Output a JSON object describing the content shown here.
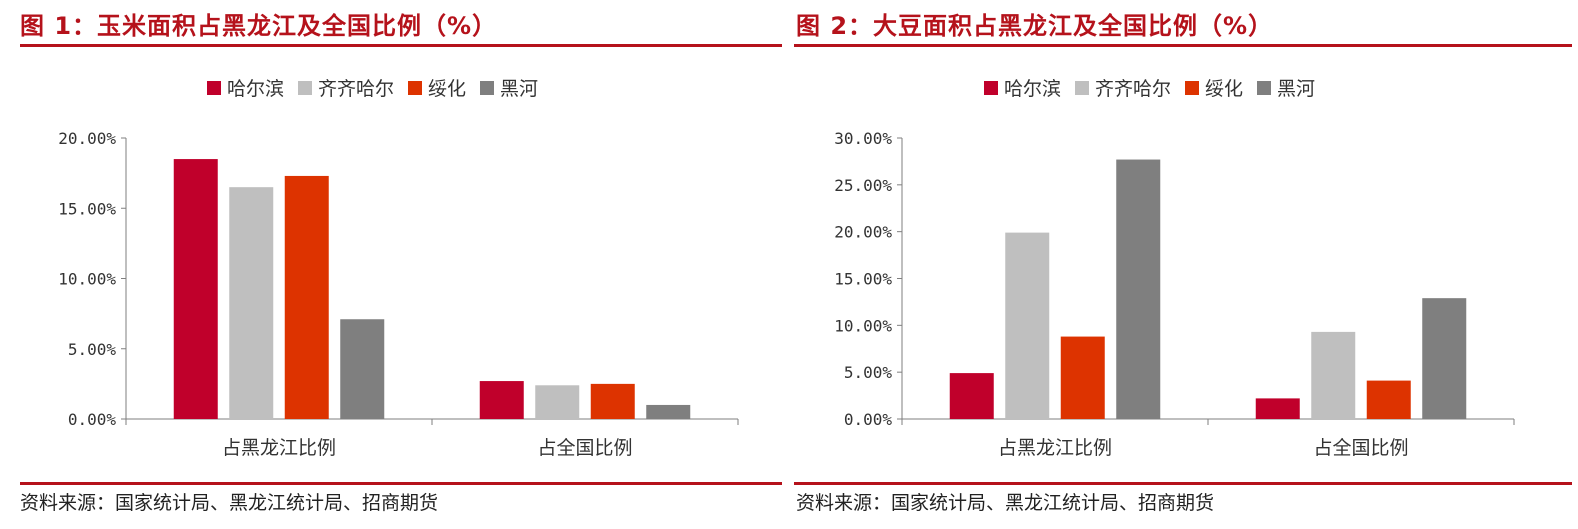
{
  "charts": [
    {
      "id": "p1",
      "title": "图 1：玉米面积占黑龙江及全国比例（%）",
      "source": "资料来源：国家统计局、黑龙江统计局、招商期货"
    },
    {
      "id": "p2",
      "title": "图 2：大豆面积占黑龙江及全国比例（%）",
      "source": "资料来源：国家统计局、黑龙江统计局、招商期货"
    }
  ],
  "colors": {
    "accent": "#b5121b",
    "哈尔滨": "#c0002b",
    "齐齐哈尔": "#bfbfbf",
    "绥化": "#dd3300",
    "黑河": "#7f7f7f"
  },
  "chart_data": [
    {
      "type": "bar",
      "title": "图 1：玉米面积占黑龙江及全国比例（%）",
      "categories": [
        "占黑龙江比例",
        "占全国比例"
      ],
      "series": [
        {
          "name": "哈尔滨",
          "values": [
            18.5,
            2.7
          ]
        },
        {
          "name": "齐齐哈尔",
          "values": [
            16.5,
            2.4
          ]
        },
        {
          "name": "绥化",
          "values": [
            17.3,
            2.5
          ]
        },
        {
          "name": "黑河",
          "values": [
            7.1,
            1.0
          ]
        }
      ],
      "ylim": [
        0,
        20
      ],
      "yticks": [
        0,
        5,
        10,
        15,
        20
      ],
      "ytick_labels": [
        "0.00%",
        "5.00%",
        "10.00%",
        "15.00%",
        "20.00%"
      ],
      "legend": "top-center",
      "grid": false
    },
    {
      "type": "bar",
      "title": "图 2：大豆面积占黑龙江及全国比例（%）",
      "categories": [
        "占黑龙江比例",
        "占全国比例"
      ],
      "series": [
        {
          "name": "哈尔滨",
          "values": [
            4.9,
            2.2
          ]
        },
        {
          "name": "齐齐哈尔",
          "values": [
            19.9,
            9.3
          ]
        },
        {
          "name": "绥化",
          "values": [
            8.8,
            4.1
          ]
        },
        {
          "name": "黑河",
          "values": [
            27.7,
            12.9
          ]
        }
      ],
      "ylim": [
        0,
        30
      ],
      "yticks": [
        0,
        5,
        10,
        15,
        20,
        25,
        30
      ],
      "ytick_labels": [
        "0.00%",
        "5.00%",
        "10.00%",
        "15.00%",
        "20.00%",
        "25.00%",
        "30.00%"
      ],
      "legend": "top-center",
      "grid": false
    }
  ]
}
